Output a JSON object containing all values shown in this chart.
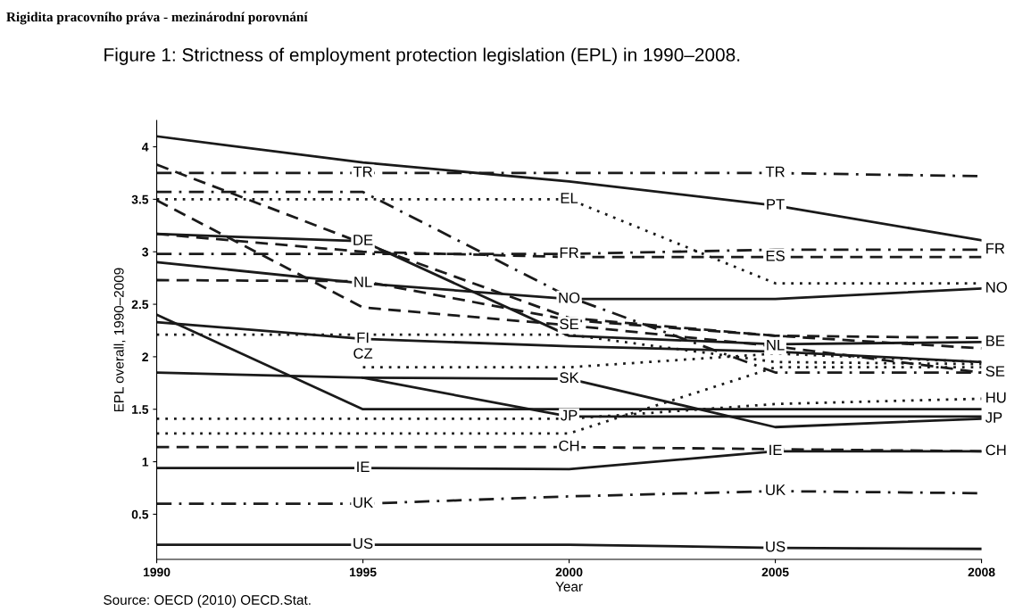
{
  "chart_data": {
    "type": "line",
    "title": "Rigidita pracovního práva - mezinárodní porovnání",
    "subtitle": "Figure 1: Strictness of employment protection legislation (EPL) in 1990–2008.",
    "xlabel": "Year",
    "ylabel": "EPL overall, 1990–2009",
    "categories": [
      "1990",
      "1995",
      "2000",
      "2005",
      "2008"
    ],
    "ylim": [
      0.07,
      4.25
    ],
    "yticks": [
      0.5,
      1,
      1.5,
      2,
      2.5,
      3,
      3.5,
      4
    ],
    "grid": false,
    "series": [
      {
        "color": "#1a1a1a",
        "line_style": "solid",
        "values": [
          4.1,
          3.85,
          3.67,
          3.44,
          3.11
        ]
      },
      {
        "color": "#1a1a1a",
        "line_style": "dashdot",
        "values": [
          3.75,
          3.75,
          3.75,
          3.75,
          3.72
        ]
      },
      {
        "color": "#1a1a1a",
        "line_style": "dashdot",
        "values": [
          3.57,
          3.57,
          2.57,
          1.85,
          1.85
        ]
      },
      {
        "color": "#1a1a1a",
        "line_style": "dotted",
        "values": [
          3.5,
          3.5,
          3.5,
          2.7,
          2.7
        ]
      },
      {
        "color": "#1a1a1a",
        "line_style": "dashed",
        "values": [
          3.83,
          3.08,
          2.37,
          2.2,
          2.08
        ]
      },
      {
        "color": "#1a1a1a",
        "line_style": "dashed",
        "values": [
          3.49,
          2.47,
          2.3,
          2.1,
          1.85
        ]
      },
      {
        "color": "#1a1a1a",
        "line_style": "solid",
        "values": [
          3.17,
          3.1,
          2.2,
          2.12,
          2.14
        ]
      },
      {
        "color": "#1a1a1a",
        "line_style": "dashed",
        "values": [
          3.17,
          3.0,
          2.95,
          2.95,
          2.95
        ]
      },
      {
        "color": "#1a1a1a",
        "line_style": "dashdot",
        "values": [
          2.98,
          2.98,
          2.98,
          3.02,
          3.02
        ]
      },
      {
        "color": "#1a1a1a",
        "line_style": "solid",
        "values": [
          2.9,
          2.7,
          2.55,
          2.55,
          2.65
        ]
      },
      {
        "color": "#1a1a1a",
        "line_style": "dashed",
        "values": [
          2.73,
          2.72,
          2.35,
          2.2,
          2.18
        ]
      },
      {
        "color": "#1a1a1a",
        "line_style": "solid",
        "values": [
          2.33,
          2.17,
          2.1,
          2.05,
          1.95
        ]
      },
      {
        "color": "#1a1a1a",
        "line_style": "solid",
        "values": [
          2.4,
          1.5,
          1.5,
          1.5,
          1.5
        ]
      },
      {
        "color": "#1a1a1a",
        "line_style": "dotted",
        "values": [
          2.21,
          2.21,
          2.21,
          1.95,
          1.93
        ]
      },
      {
        "color": "#1a1a1a",
        "line_style": "solid",
        "values": [
          1.85,
          1.8,
          1.79,
          1.33,
          1.41
        ]
      },
      {
        "color": "#1a1a1a",
        "line_style": "solid",
        "values": [
          null,
          1.8,
          1.43,
          1.43,
          1.43
        ]
      },
      {
        "color": "#1a1a1a",
        "line_style": "dotted",
        "values": [
          null,
          1.9,
          1.9,
          2.03,
          1.95
        ]
      },
      {
        "color": "#1a1a1a",
        "line_style": "dotted",
        "values": [
          1.41,
          1.41,
          1.41,
          1.55,
          1.6
        ]
      },
      {
        "color": "#1a1a1a",
        "line_style": "dotted",
        "values": [
          1.27,
          1.27,
          1.27,
          1.9,
          1.9
        ]
      },
      {
        "color": "#1a1a1a",
        "line_style": "dashed",
        "values": [
          1.14,
          1.14,
          1.14,
          1.12,
          1.1
        ]
      },
      {
        "color": "#1a1a1a",
        "line_style": "solid",
        "values": [
          0.94,
          0.94,
          0.93,
          1.1,
          1.1
        ]
      },
      {
        "color": "#1a1a1a",
        "line_style": "dashdot",
        "values": [
          0.6,
          0.6,
          0.67,
          0.72,
          0.7
        ]
      },
      {
        "color": "#1a1a1a",
        "line_style": "solid",
        "values": [
          0.21,
          0.21,
          0.21,
          0.18,
          0.17
        ]
      }
    ],
    "annotations": [
      {
        "text": "TR",
        "x": "1995",
        "y": 3.75
      },
      {
        "text": "TR",
        "x": "2005",
        "y": 3.75
      },
      {
        "text": "PT",
        "x": "2005",
        "y": 3.44
      },
      {
        "text": "EL",
        "x": "2000",
        "y": 3.5
      },
      {
        "text": "DE",
        "x": "1995",
        "y": 3.1
      },
      {
        "text": "FR",
        "x": "2000",
        "y": 2.98
      },
      {
        "text": "ES",
        "x": "2005",
        "y": 2.95
      },
      {
        "text": "FR",
        "x": "2008",
        "y": 3.02
      },
      {
        "text": "NL",
        "x": "1995",
        "y": 2.7
      },
      {
        "text": "NO",
        "x": "2000",
        "y": 2.55
      },
      {
        "text": "NO",
        "x": "2008",
        "y": 2.65
      },
      {
        "text": "SE",
        "x": "2000",
        "y": 2.3
      },
      {
        "text": "NL",
        "x": "2005",
        "y": 2.1
      },
      {
        "text": "BE",
        "x": "2008",
        "y": 2.14
      },
      {
        "text": "FI",
        "x": "1995",
        "y": 2.17
      },
      {
        "text": "CZ",
        "x": "1995",
        "y": 2.02
      },
      {
        "text": "SK",
        "x": "2000",
        "y": 1.79
      },
      {
        "text": "SE",
        "x": "2008",
        "y": 1.85
      },
      {
        "text": "HU",
        "x": "2008",
        "y": 1.6
      },
      {
        "text": "JP",
        "x": "2000",
        "y": 1.43
      },
      {
        "text": "JP",
        "x": "2008",
        "y": 1.41
      },
      {
        "text": "CH",
        "x": "2000",
        "y": 1.14
      },
      {
        "text": "CH",
        "x": "2008",
        "y": 1.1
      },
      {
        "text": "IE",
        "x": "1995",
        "y": 0.94
      },
      {
        "text": "IE",
        "x": "2005",
        "y": 1.1
      },
      {
        "text": "UK",
        "x": "1995",
        "y": 0.6
      },
      {
        "text": "UK",
        "x": "2005",
        "y": 0.72
      },
      {
        "text": "US",
        "x": "1995",
        "y": 0.21
      },
      {
        "text": "US",
        "x": "2005",
        "y": 0.18
      },
      "Source: OECD (2010) OECD.Stat."
    ]
  }
}
